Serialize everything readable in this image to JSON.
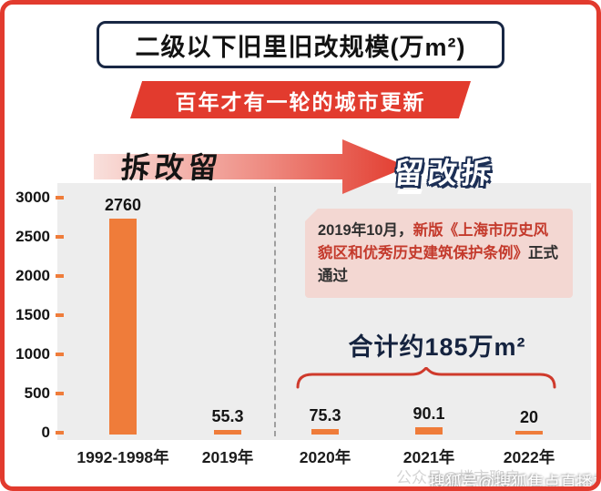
{
  "page": {
    "title": "二级以下旧里旧改规模(万m²)",
    "banner": "百年才有一轮的城市更新",
    "phase_left": "拆改留",
    "phase_right": "留改拆",
    "total_label": "合计约185万m²",
    "watermark_front": "搜狐号@搜狐焦点直播站",
    "watermark_back": "公众号@楼市聊房"
  },
  "annotation": {
    "prefix": "2019年10月，",
    "highlight": "新版《上海市历史风貌区和优秀历史建筑保护条例》",
    "suffix": "正式通过"
  },
  "chart_data": {
    "type": "bar",
    "title": "二级以下旧里旧改规模(万m²)",
    "categories": [
      "1992-1998年",
      "2019年",
      "2020年",
      "2021年",
      "2022年"
    ],
    "values": [
      2760,
      55.3,
      75.3,
      90.1,
      20
    ],
    "xlabel": "",
    "ylabel": "",
    "ylim": [
      0,
      3000
    ],
    "yticks": [
      0,
      500,
      1000,
      1500,
      2000,
      2500,
      3000
    ],
    "bar_color": "#ef7c3a",
    "grid": false,
    "legend": null,
    "annotations": [
      "拆改留",
      "留改拆",
      "2019年10月，新版《上海市历史风貌区和优秀历史建筑保护条例》正式通过",
      "合计约185万m²"
    ]
  },
  "colors": {
    "frame_red": "#e23b2e",
    "bar_orange": "#ef7c3a",
    "navy": "#15233f",
    "plot_bg": "#ededed",
    "annotation_bg": "#f3d7d2",
    "annotation_red": "#c43a2c"
  }
}
